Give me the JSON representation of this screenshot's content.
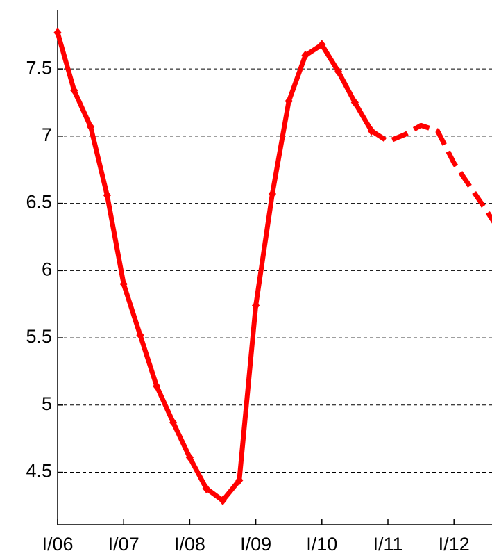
{
  "chart_data": {
    "type": "line",
    "categories": [
      "I/06",
      null,
      null,
      null,
      "I/07",
      null,
      null,
      null,
      "I/08",
      null,
      null,
      null,
      "I/09",
      null,
      null,
      null,
      "I/10",
      null,
      null,
      null,
      "I/11",
      null,
      null,
      null,
      "I/12",
      null,
      null,
      null
    ],
    "series": [
      {
        "color": "#ff0000",
        "dashed": false,
        "markers": true,
        "values": [
          7.77,
          7.34,
          7.07,
          6.56,
          5.9,
          5.52,
          5.14,
          4.87,
          4.61,
          4.38,
          4.29,
          4.44,
          5.74,
          6.57,
          7.26,
          7.6,
          7.68,
          7.48,
          7.25,
          7.04,
          null,
          null,
          null,
          null,
          null,
          null,
          null,
          null
        ]
      },
      {
        "color": "#ff0000",
        "dashed": true,
        "markers": false,
        "values": [
          null,
          null,
          null,
          null,
          null,
          null,
          null,
          null,
          null,
          null,
          null,
          null,
          null,
          null,
          null,
          null,
          null,
          null,
          null,
          7.04,
          6.96,
          7.01,
          7.08,
          7.04,
          6.8,
          6.62,
          6.44,
          6.25
        ]
      }
    ],
    "ylim": [
      4.11,
      7.94
    ],
    "yticks": [
      4.5,
      5,
      5.5,
      6,
      6.5,
      7,
      7.5
    ],
    "grid": true
  }
}
